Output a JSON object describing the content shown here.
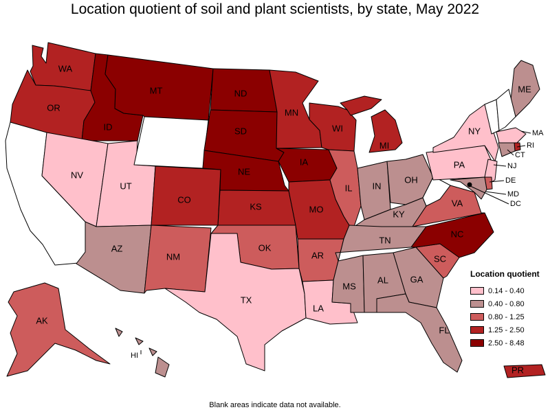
{
  "title": "Location quotient of soil and plant scientists, by state, May 2022",
  "footnote": "Blank areas indicate data not available.",
  "legend": {
    "title": "Location quotient",
    "items": [
      {
        "label": "0.14 - 0.40",
        "color": "#ffc0cb"
      },
      {
        "label": "0.40 - 0.80",
        "color": "#bc8f8f"
      },
      {
        "label": "0.80 - 1.25",
        "color": "#cd5c5c"
      },
      {
        "label": "1.25 - 2.50",
        "color": "#b22222"
      },
      {
        "label": "2.50 - 8.48",
        "color": "#8b0000"
      }
    ]
  },
  "no_data_color": "#ffffff",
  "states": {
    "WA": {
      "label": "WA",
      "bin": 3
    },
    "OR": {
      "label": "OR",
      "bin": 3
    },
    "CA": {
      "label": "",
      "bin": null
    },
    "ID": {
      "label": "ID",
      "bin": 4
    },
    "NV": {
      "label": "NV",
      "bin": 0
    },
    "UT": {
      "label": "UT",
      "bin": 0
    },
    "AZ": {
      "label": "AZ",
      "bin": 1
    },
    "MT": {
      "label": "MT",
      "bin": 4
    },
    "WY": {
      "label": "",
      "bin": null
    },
    "CO": {
      "label": "CO",
      "bin": 3
    },
    "NM": {
      "label": "NM",
      "bin": 2
    },
    "ND": {
      "label": "ND",
      "bin": 4
    },
    "SD": {
      "label": "SD",
      "bin": 4
    },
    "NE": {
      "label": "NE",
      "bin": 4
    },
    "KS": {
      "label": "KS",
      "bin": 3
    },
    "OK": {
      "label": "OK",
      "bin": 2
    },
    "TX": {
      "label": "TX",
      "bin": 0
    },
    "MN": {
      "label": "MN",
      "bin": 3
    },
    "IA": {
      "label": "IA",
      "bin": 4
    },
    "MO": {
      "label": "MO",
      "bin": 3
    },
    "AR": {
      "label": "AR",
      "bin": 2
    },
    "LA": {
      "label": "LA",
      "bin": 0
    },
    "WI": {
      "label": "WI",
      "bin": 3
    },
    "IL": {
      "label": "IL",
      "bin": 2
    },
    "MI": {
      "label": "MI",
      "bin": 3
    },
    "IN": {
      "label": "IN",
      "bin": 1
    },
    "OH": {
      "label": "OH",
      "bin": 1
    },
    "KY": {
      "label": "KY",
      "bin": 1
    },
    "TN": {
      "label": "TN",
      "bin": 1
    },
    "MS": {
      "label": "MS",
      "bin": 1
    },
    "AL": {
      "label": "AL",
      "bin": 1
    },
    "GA": {
      "label": "GA",
      "bin": 1
    },
    "FL": {
      "label": "FL",
      "bin": 1
    },
    "SC": {
      "label": "SC",
      "bin": 2
    },
    "NC": {
      "label": "NC",
      "bin": 4
    },
    "VA": {
      "label": "VA",
      "bin": 2
    },
    "WV": {
      "label": "",
      "bin": null
    },
    "PA": {
      "label": "PA",
      "bin": 0
    },
    "NY": {
      "label": "NY",
      "bin": 0
    },
    "ME": {
      "label": "ME",
      "bin": 1
    },
    "VT": {
      "label": "",
      "bin": null
    },
    "NH": {
      "label": "",
      "bin": null
    },
    "MA": {
      "label": "MA",
      "bin": 0
    },
    "RI": {
      "label": "RI",
      "bin": 3
    },
    "CT": {
      "label": "CT",
      "bin": 1
    },
    "NJ": {
      "label": "NJ",
      "bin": 0
    },
    "DE": {
      "label": "DE",
      "bin": 2
    },
    "MD": {
      "label": "MD",
      "bin": 1
    },
    "DC": {
      "label": "DC",
      "bin": 4
    },
    "AK": {
      "label": "AK",
      "bin": 2
    },
    "HI": {
      "label": "HI",
      "bin": 1
    },
    "PR": {
      "label": "PR",
      "bin": 3
    }
  }
}
